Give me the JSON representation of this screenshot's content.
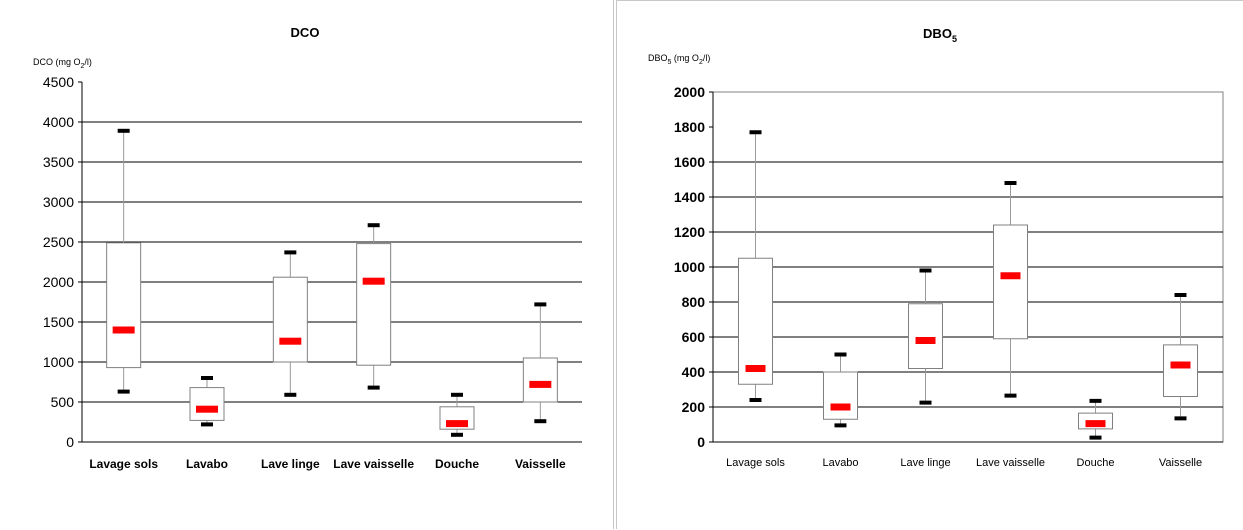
{
  "chart_data": [
    {
      "type": "box",
      "title": "DCO",
      "ylabel_prefix": "DCO (mg O",
      "ylabel_sub": "2",
      "ylabel_suffix": "/l)",
      "categories": [
        "Lavage sols",
        "Lavabo",
        "Lave linge",
        "Lave vaisselle",
        "Douche",
        "Vaisselle"
      ],
      "ylim": [
        0,
        4500
      ],
      "yticks": [
        "0",
        "500",
        "1000",
        "1500",
        "2000",
        "2500",
        "3000",
        "3500",
        "4000",
        "4500"
      ],
      "grid_lines": [
        500,
        1000,
        1500,
        2000,
        2500,
        3000,
        3500,
        4000
      ],
      "boxes": [
        {
          "min": 630,
          "q1": 930,
          "median": 1400,
          "q3": 2490,
          "max": 3890
        },
        {
          "min": 220,
          "q1": 270,
          "median": 410,
          "q3": 680,
          "max": 800
        },
        {
          "min": 590,
          "q1": 1000,
          "median": 1260,
          "q3": 2060,
          "max": 2370
        },
        {
          "min": 680,
          "q1": 960,
          "median": 2010,
          "q3": 2480,
          "max": 2710
        },
        {
          "min": 90,
          "q1": 160,
          "median": 230,
          "q3": 440,
          "max": 590
        },
        {
          "min": 260,
          "q1": 500,
          "median": 720,
          "q3": 1050,
          "max": 1720
        }
      ]
    },
    {
      "type": "box",
      "title": "DBO",
      "title_sub": "5",
      "ylabel_prefix": "DBO",
      "ylabel_sub": "5",
      "ylabel_middle": " (mg O",
      "ylabel_sub2": "2",
      "ylabel_suffix": "/l)",
      "categories": [
        "Lavage sols",
        "Lavabo",
        "Lave linge",
        "Lave vaisselle",
        "Douche",
        "Vaisselle"
      ],
      "ylim": [
        0,
        2000
      ],
      "yticks": [
        "0",
        "200",
        "400",
        "600",
        "800",
        "1000",
        "1200",
        "1400",
        "1600",
        "1800",
        "2000"
      ],
      "grid_lines": [
        200,
        400,
        600,
        800,
        1000,
        1200,
        1400,
        1600
      ],
      "boxes": [
        {
          "min": 240,
          "q1": 330,
          "median": 420,
          "q3": 1050,
          "max": 1770
        },
        {
          "min": 95,
          "q1": 130,
          "median": 200,
          "q3": 400,
          "max": 500
        },
        {
          "min": 225,
          "q1": 420,
          "median": 580,
          "q3": 790,
          "max": 980
        },
        {
          "min": 265,
          "q1": 590,
          "median": 950,
          "q3": 1240,
          "max": 1480
        },
        {
          "min": 25,
          "q1": 75,
          "median": 105,
          "q3": 165,
          "max": 235
        },
        {
          "min": 135,
          "q1": 260,
          "median": 440,
          "q3": 555,
          "max": 840
        }
      ]
    }
  ],
  "colors": {
    "median": "#ff0000",
    "whisker_cap": "#000000",
    "box": "#808080",
    "grid": "#000000"
  }
}
